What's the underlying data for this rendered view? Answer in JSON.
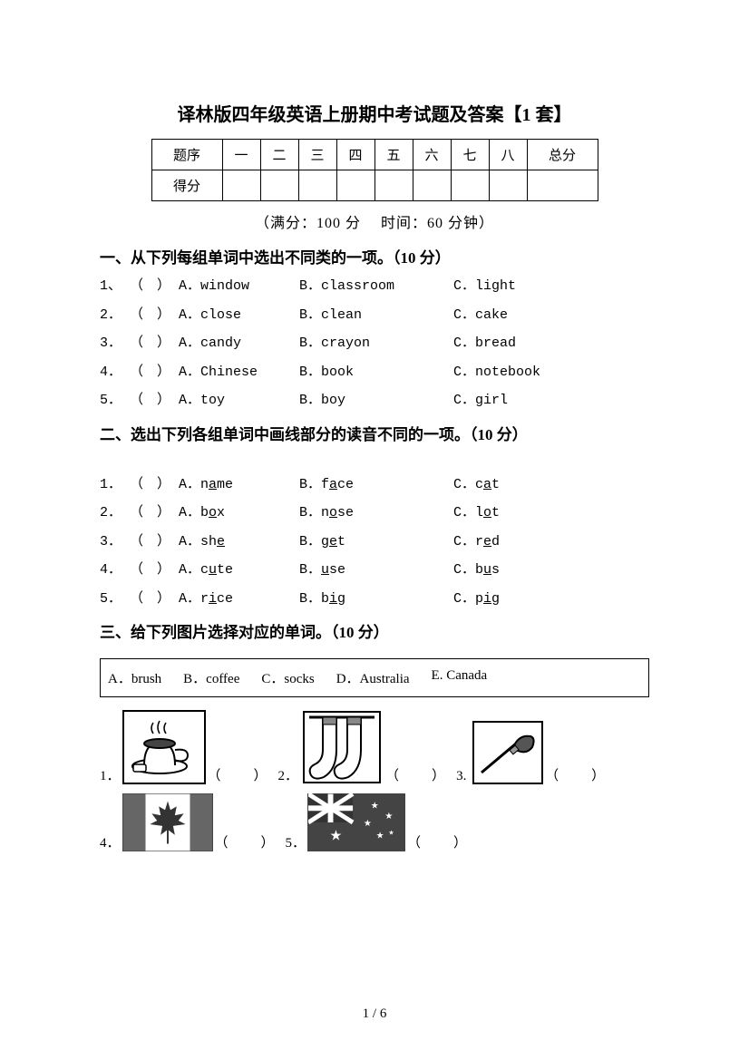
{
  "title": "译林版四年级英语上册期中考试题及答案【1 套】",
  "score_table": {
    "row1": [
      "题序",
      "一",
      "二",
      "三",
      "四",
      "五",
      "六",
      "七",
      "八",
      "总分"
    ],
    "row2_label": "得分"
  },
  "meta": "（满分：100 分　 时间：60 分钟）",
  "section1": {
    "title": "一、从下列每组单词中选出不同类的一项。（10 分）",
    "rows": [
      {
        "n": "1、",
        "paren": "（　）",
        "a": "A．window",
        "b": "B．classroom",
        "c": "C．light"
      },
      {
        "n": "2．",
        "paren": "（　）",
        "a": "A．close",
        "b": "B．clean",
        "c": "C．cake"
      },
      {
        "n": "3．",
        "paren": "（　）",
        "a": "A．candy",
        "b": "B．crayon",
        "c": "C．bread"
      },
      {
        "n": "4．",
        "paren": "（　）",
        "a": "A．Chinese",
        "b": "B．book",
        "c": "C．notebook"
      },
      {
        "n": "5．",
        "paren": "（　）",
        "a": "A．toy",
        "b": "B．boy",
        "c": "C．girl"
      }
    ]
  },
  "section2": {
    "title": "二、选出下列各组单词中画线部分的读音不同的一项。（10 分）",
    "rows": [
      {
        "n": "1．",
        "paren": "（　）",
        "a_pre": "A．n",
        "a_u": "a",
        "a_post": "me",
        "b_pre": "B．f",
        "b_u": "a",
        "b_post": "ce",
        "c_pre": "C．c",
        "c_u": "a",
        "c_post": "t"
      },
      {
        "n": "2．",
        "paren": "（　）",
        "a_pre": "A．b",
        "a_u": "o",
        "a_post": "x",
        "b_pre": "B．n",
        "b_u": "o",
        "b_post": "se",
        "c_pre": "C．l",
        "c_u": "o",
        "c_post": "t"
      },
      {
        "n": "3．",
        "paren": "（　）",
        "a_pre": "A．sh",
        "a_u": "e",
        "a_post": "",
        "b_pre": " B．g",
        "b_u": "e",
        "b_post": "t",
        "c_pre": "C．r",
        "c_u": "e",
        "c_post": "d"
      },
      {
        "n": "4．",
        "paren": "（　）",
        "a_pre": "A．c",
        "a_u": "u",
        "a_post": "te",
        "b_pre": "B．",
        "b_u": "u",
        "b_post": "se",
        "c_pre": "C．b",
        "c_u": "u",
        "c_post": "s"
      },
      {
        "n": "5．",
        "paren": "（　）",
        "a_pre": "A．r",
        "a_u": "i",
        "a_post": "ce",
        "b_pre": "B．b",
        "b_u": "i",
        "b_post": "g",
        "c_pre": "C．p",
        "c_u": "i",
        "c_post": "g"
      }
    ]
  },
  "section3": {
    "title": "三、给下列图片选择对应的单词。（10 分）",
    "bank": [
      "A．brush",
      "B．coffee",
      "C．socks",
      "D．Australia",
      "E. Canada"
    ],
    "items": {
      "q1": "1．",
      "q2": "2．",
      "q3": "3.",
      "q4": "4．",
      "q5": "5．",
      "paren": "（　　）",
      "paren_small": "（　　）"
    }
  },
  "page_footer": "1 / 6"
}
